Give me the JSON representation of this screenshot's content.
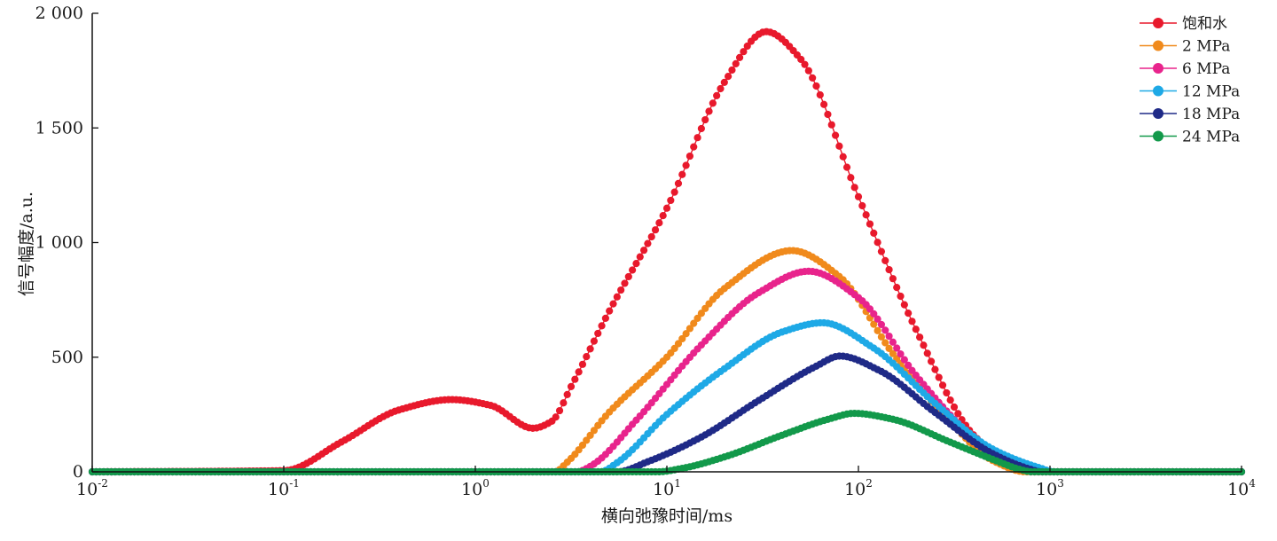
{
  "chart_data": {
    "type": "line",
    "title": "",
    "xlabel": "横向弛豫时间/ms",
    "ylabel": "信号幅度/a.u.",
    "x_scale": "log",
    "xlim": [
      0.01,
      10000
    ],
    "ylim": [
      0,
      2000
    ],
    "grid": false,
    "legend_position": "top-right",
    "x_ticks": [
      {
        "value": 0.01,
        "base": "10",
        "exp": "-2"
      },
      {
        "value": 0.1,
        "base": "10",
        "exp": "-1"
      },
      {
        "value": 1,
        "base": "10",
        "exp": "0"
      },
      {
        "value": 10,
        "base": "10",
        "exp": "1"
      },
      {
        "value": 100,
        "base": "10",
        "exp": "2"
      },
      {
        "value": 1000,
        "base": "10",
        "exp": "3"
      },
      {
        "value": 10000,
        "base": "10",
        "exp": "4"
      }
    ],
    "y_ticks": [
      {
        "value": 0,
        "label": "0"
      },
      {
        "value": 500,
        "label": "500"
      },
      {
        "value": 1000,
        "label": "1 000"
      },
      {
        "value": 1500,
        "label": "1 500"
      },
      {
        "value": 2000,
        "label": "2 000"
      }
    ],
    "series": [
      {
        "name": "饱和水",
        "color": "#e8192c",
        "points": [
          [
            0.01,
            0
          ],
          [
            0.1,
            5
          ],
          [
            0.2,
            130
          ],
          [
            0.4,
            270
          ],
          [
            0.75,
            315
          ],
          [
            1.2,
            290
          ],
          [
            2.0,
            190
          ],
          [
            2.5,
            220
          ],
          [
            3.2,
            380
          ],
          [
            5,
            700
          ],
          [
            10,
            1150
          ],
          [
            20,
            1700
          ],
          [
            33,
            1920
          ],
          [
            50,
            1800
          ],
          [
            100,
            1200
          ],
          [
            200,
            620
          ],
          [
            400,
            160
          ],
          [
            700,
            10
          ],
          [
            800,
            0
          ],
          [
            10000,
            0
          ]
        ]
      },
      {
        "name": "2 MPa",
        "color": "#f08a1c",
        "points": [
          [
            0.01,
            0
          ],
          [
            2.6,
            0
          ],
          [
            3,
            40
          ],
          [
            5,
            260
          ],
          [
            10,
            500
          ],
          [
            20,
            800
          ],
          [
            45,
            965
          ],
          [
            80,
            850
          ],
          [
            150,
            520
          ],
          [
            300,
            220
          ],
          [
            500,
            50
          ],
          [
            750,
            0
          ],
          [
            10000,
            0
          ]
        ]
      },
      {
        "name": "6 MPa",
        "color": "#e8248c",
        "points": [
          [
            0.01,
            0
          ],
          [
            3.4,
            0
          ],
          [
            4,
            25
          ],
          [
            7,
            230
          ],
          [
            15,
            550
          ],
          [
            30,
            780
          ],
          [
            55,
            875
          ],
          [
            100,
            760
          ],
          [
            200,
            420
          ],
          [
            400,
            150
          ],
          [
            700,
            15
          ],
          [
            800,
            0
          ],
          [
            10000,
            0
          ]
        ]
      },
      {
        "name": "12 MPa",
        "color": "#1ea9e6",
        "points": [
          [
            0.01,
            0
          ],
          [
            4.5,
            0
          ],
          [
            5.5,
            40
          ],
          [
            10,
            250
          ],
          [
            20,
            450
          ],
          [
            40,
            610
          ],
          [
            65,
            650
          ],
          [
            120,
            540
          ],
          [
            250,
            300
          ],
          [
            500,
            100
          ],
          [
            900,
            15
          ],
          [
            1050,
            0
          ],
          [
            10000,
            0
          ]
        ]
      },
      {
        "name": "18 MPa",
        "color": "#1f2a87",
        "points": [
          [
            0.01,
            0
          ],
          [
            5.5,
            0
          ],
          [
            8,
            45
          ],
          [
            15,
            150
          ],
          [
            30,
            310
          ],
          [
            60,
            460
          ],
          [
            80,
            505
          ],
          [
            130,
            440
          ],
          [
            250,
            260
          ],
          [
            500,
            80
          ],
          [
            800,
            10
          ],
          [
            900,
            0
          ],
          [
            10000,
            0
          ]
        ]
      },
      {
        "name": "24 MPa",
        "color": "#12994a",
        "points": [
          [
            0.01,
            0
          ],
          [
            9,
            0
          ],
          [
            12,
            15
          ],
          [
            20,
            65
          ],
          [
            40,
            160
          ],
          [
            70,
            230
          ],
          [
            95,
            255
          ],
          [
            150,
            230
          ],
          [
            300,
            130
          ],
          [
            500,
            55
          ],
          [
            700,
            10
          ],
          [
            800,
            0
          ],
          [
            10000,
            0
          ]
        ]
      }
    ]
  }
}
